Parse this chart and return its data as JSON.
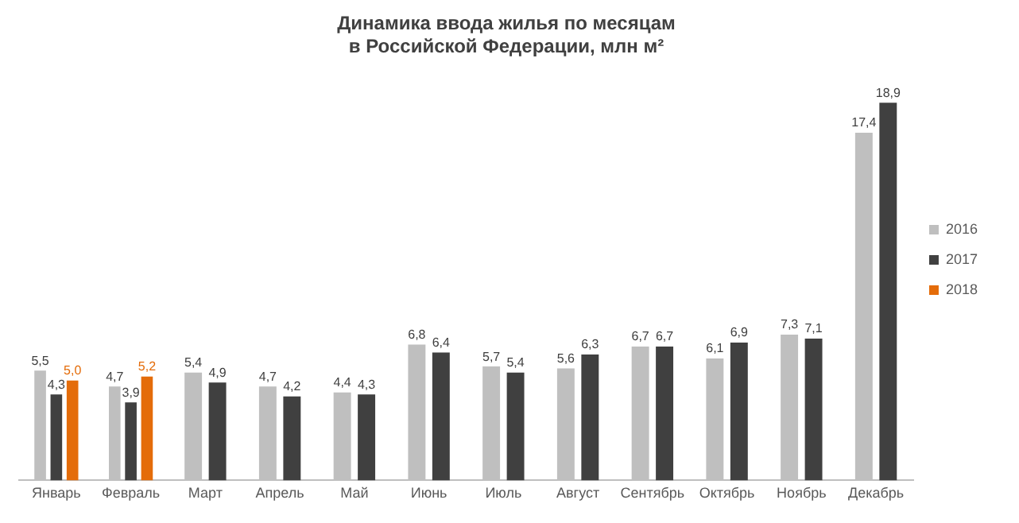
{
  "chart_data": {
    "type": "bar",
    "title": [
      "Динамика ввода жилья по месяцам",
      "в Российской Федерации, млн м²"
    ],
    "categories": [
      "Январь",
      "Февраль",
      "Март",
      "Апрель",
      "Май",
      "Июнь",
      "Июль",
      "Август",
      "Сентябрь",
      "Октябрь",
      "Ноябрь",
      "Декабрь"
    ],
    "series": [
      {
        "name": "2016",
        "color": "#bfbfbf",
        "values": [
          5.5,
          4.7,
          5.4,
          4.7,
          4.4,
          6.8,
          5.7,
          5.6,
          6.7,
          6.1,
          7.3,
          17.4
        ],
        "value_labels": [
          "5,5",
          "4,7",
          "5,4",
          "4,7",
          "4,4",
          "6,8",
          "5,7",
          "5,6",
          "6,7",
          "6,1",
          "7,3",
          "17,4"
        ]
      },
      {
        "name": "2017",
        "color": "#404040",
        "values": [
          4.3,
          3.9,
          4.9,
          4.2,
          4.3,
          6.4,
          5.4,
          6.3,
          6.7,
          6.9,
          7.1,
          18.9
        ],
        "value_labels": [
          "4,3",
          "3,9",
          "4,9",
          "4,2",
          "4,3",
          "6,4",
          "5,4",
          "6,3",
          "6,7",
          "6,9",
          "7,1",
          "18,9"
        ]
      },
      {
        "name": "2018",
        "color": "#e46c0a",
        "values": [
          5.0,
          5.2,
          null,
          null,
          null,
          null,
          null,
          null,
          null,
          null,
          null,
          null
        ],
        "value_labels": [
          "5,0",
          "5,2",
          null,
          null,
          null,
          null,
          null,
          null,
          null,
          null,
          null,
          null
        ]
      }
    ],
    "legend": "right",
    "grid": false
  }
}
